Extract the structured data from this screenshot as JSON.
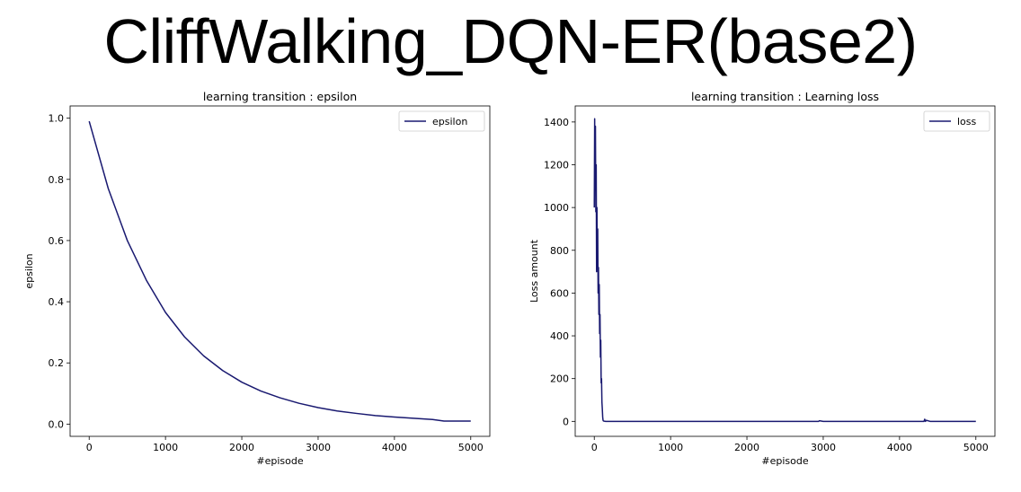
{
  "title": "CliffWalking_DQN-ER(base2)",
  "chart_data": [
    {
      "type": "line",
      "title": "learning transition : epsilon",
      "xlabel": "#episode",
      "ylabel": "epsilon",
      "xlim": [
        -250,
        5250
      ],
      "ylim": [
        -0.04,
        1.04
      ],
      "xticks": [
        0,
        1000,
        2000,
        3000,
        4000,
        5000
      ],
      "yticks": [
        0.0,
        0.2,
        0.4,
        0.6,
        0.8,
        1.0
      ],
      "ytick_labels": [
        "0.0",
        "0.2",
        "0.4",
        "0.6",
        "0.8",
        "1.0"
      ],
      "legend_position": "upper-right",
      "grid": false,
      "series": [
        {
          "name": "epsilon",
          "color": "#191970",
          "x": [
            0,
            250,
            500,
            750,
            1000,
            1250,
            1500,
            1750,
            2000,
            2250,
            2500,
            2750,
            3000,
            3250,
            3500,
            3750,
            4000,
            4250,
            4500,
            4650,
            4750,
            5000
          ],
          "y": [
            0.99,
            0.77,
            0.6,
            0.47,
            0.365,
            0.285,
            0.223,
            0.175,
            0.137,
            0.108,
            0.086,
            0.068,
            0.054,
            0.043,
            0.035,
            0.028,
            0.023,
            0.019,
            0.015,
            0.01,
            0.01,
            0.01
          ]
        }
      ]
    },
    {
      "type": "line",
      "title": "learning transition : Learning loss",
      "xlabel": "#episode",
      "ylabel": "Loss amount",
      "xlim": [
        -250,
        5250
      ],
      "ylim": [
        -70,
        1475
      ],
      "xticks": [
        0,
        1000,
        2000,
        3000,
        4000,
        5000
      ],
      "yticks": [
        0,
        200,
        400,
        600,
        800,
        1000,
        1200,
        1400
      ],
      "ytick_labels": [
        "0",
        "200",
        "400",
        "600",
        "800",
        "1000",
        "1200",
        "1400"
      ],
      "legend_position": "upper-right",
      "grid": false,
      "series": [
        {
          "name": "loss",
          "color": "#191970",
          "x": [
            0,
            5,
            10,
            15,
            20,
            25,
            30,
            35,
            40,
            45,
            50,
            55,
            60,
            65,
            70,
            75,
            80,
            85,
            90,
            95,
            100,
            105,
            110,
            115,
            120,
            130,
            150,
            200,
            500,
            1000,
            2000,
            2940,
            2950,
            3000,
            4000,
            4320,
            4330,
            4340,
            4350,
            4400,
            5000
          ],
          "y": [
            1000,
            1415,
            1100,
            1380,
            980,
            1200,
            700,
            1000,
            760,
            900,
            600,
            720,
            500,
            640,
            410,
            500,
            300,
            380,
            180,
            200,
            90,
            60,
            20,
            5,
            2,
            1,
            0,
            0,
            0,
            0,
            0,
            0,
            3,
            0,
            0,
            0,
            10,
            0,
            5,
            0,
            0
          ]
        }
      ]
    }
  ]
}
